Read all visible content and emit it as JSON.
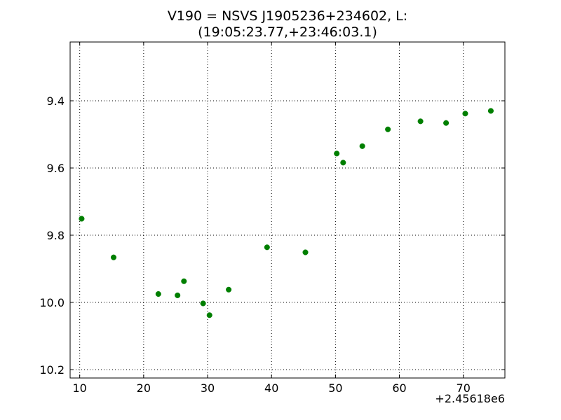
{
  "chart_data": {
    "type": "scatter",
    "title_line1": "V190 = NSVS J1905236+234602, L:",
    "title_line2": "(19:05:23.77,+23:46:03.1)",
    "xlabel": "",
    "ylabel": "",
    "x_offset_label": "+2.45618e6",
    "xlim": [
      8.5,
      76.5
    ],
    "ylim": [
      10.225,
      9.225
    ],
    "y_inverted": true,
    "grid": true,
    "grid_style": "dotted",
    "marker_color": "#007f00",
    "x_ticks": [
      10,
      20,
      30,
      40,
      50,
      60,
      70
    ],
    "x_tick_labels": [
      "10",
      "20",
      "30",
      "40",
      "50",
      "60",
      "70"
    ],
    "y_ticks": [
      9.4,
      9.6,
      9.8,
      10.0,
      10.2
    ],
    "y_tick_labels": [
      "9.4",
      "9.6",
      "9.8",
      "10.0",
      "10.2"
    ],
    "series": [
      {
        "x": [
          10.3,
          15.3,
          22.3,
          25.3,
          26.3,
          29.3,
          30.3,
          33.3,
          39.3,
          45.3,
          50.2,
          51.2,
          54.2,
          58.2,
          63.3,
          67.3,
          70.3,
          74.3
        ],
        "y": [
          9.751,
          9.866,
          9.975,
          9.979,
          9.937,
          10.003,
          10.038,
          9.962,
          9.836,
          9.851,
          9.557,
          9.584,
          9.535,
          9.485,
          9.461,
          9.466,
          9.438,
          9.43
        ]
      }
    ]
  }
}
